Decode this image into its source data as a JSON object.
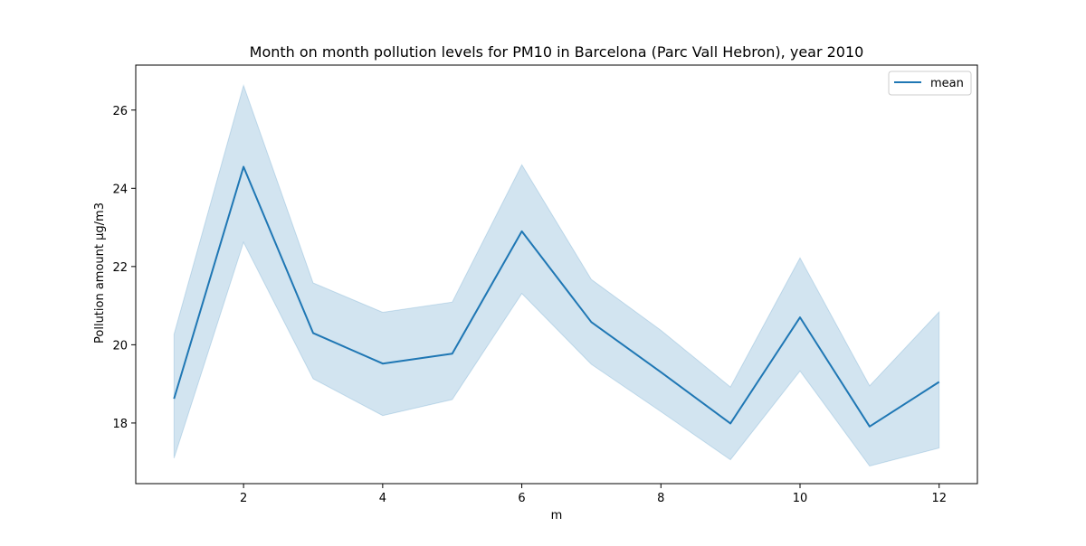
{
  "chart_data": {
    "type": "line",
    "title": "Month on month pollution levels for PM10 in Barcelona (Parc Vall Hebron), year 2010",
    "xlabel": "m",
    "ylabel": "Pollution amount μg/m3",
    "x": [
      1,
      2,
      3,
      4,
      5,
      6,
      7,
      8,
      9,
      10,
      11,
      12
    ],
    "series": [
      {
        "name": "mean",
        "color": "#1f77b4",
        "values": [
          18.62,
          24.55,
          20.3,
          19.52,
          19.77,
          22.9,
          20.58,
          19.3,
          17.99,
          20.7,
          17.91,
          19.05
        ],
        "ci_upper": [
          20.27,
          26.63,
          21.58,
          20.83,
          21.09,
          24.6,
          21.67,
          20.37,
          18.92,
          22.22,
          18.95,
          20.84
        ],
        "ci_lower": [
          17.1,
          22.62,
          19.13,
          18.19,
          18.6,
          21.31,
          19.5,
          18.29,
          17.06,
          19.33,
          16.9,
          17.36
        ]
      }
    ],
    "band_color": "#1f77b4",
    "xlim": [
      0.45,
      12.55
    ],
    "ylim": [
      16.45,
      27.15
    ],
    "xticks": [
      2,
      4,
      6,
      8,
      10,
      12
    ],
    "yticks": [
      18,
      20,
      22,
      24,
      26
    ],
    "grid": false,
    "legend_position": "top-right"
  }
}
